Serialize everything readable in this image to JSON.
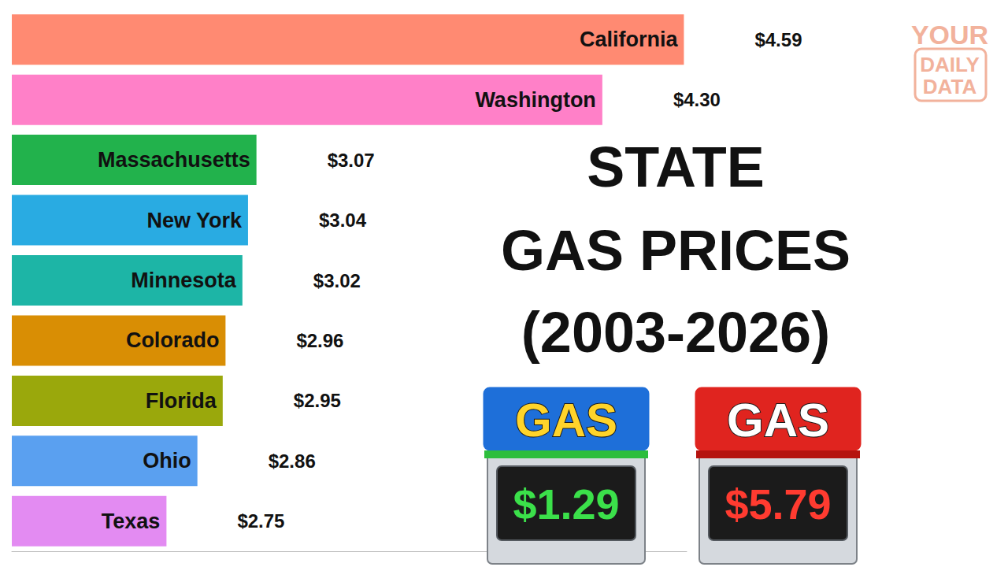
{
  "chart_data": {
    "type": "bar",
    "orientation": "horizontal",
    "title": "STATE GAS PRICES (2003-2026)",
    "categories": [
      "California",
      "Washington",
      "Massachusetts",
      "New York",
      "Minnesota",
      "Colorado",
      "Florida",
      "Ohio",
      "Texas"
    ],
    "values": [
      4.59,
      4.3,
      3.07,
      3.04,
      3.02,
      2.96,
      2.95,
      2.86,
      2.75
    ],
    "value_labels": [
      "$4.59",
      "$4.30",
      "$3.07",
      "$3.04",
      "$3.02",
      "$2.96",
      "$2.95",
      "$2.86",
      "$2.75"
    ],
    "colors": [
      "#FF8A72",
      "#FF80C8",
      "#22B24C",
      "#29ABE2",
      "#1DB5A6",
      "#D98E04",
      "#9AA80C",
      "#5AA0F0",
      "#E38BF2"
    ],
    "xlim": [
      2.2,
      4.6
    ],
    "tick_labels": false,
    "grid": false,
    "data_labels": true,
    "logo": "YOUR DAILY DATA",
    "signs": [
      {
        "text": "GAS",
        "price": "$1.29",
        "color": "#1E6FD9"
      },
      {
        "text": "GAS",
        "price": "$5.79",
        "color": "#E0241F"
      }
    ]
  }
}
